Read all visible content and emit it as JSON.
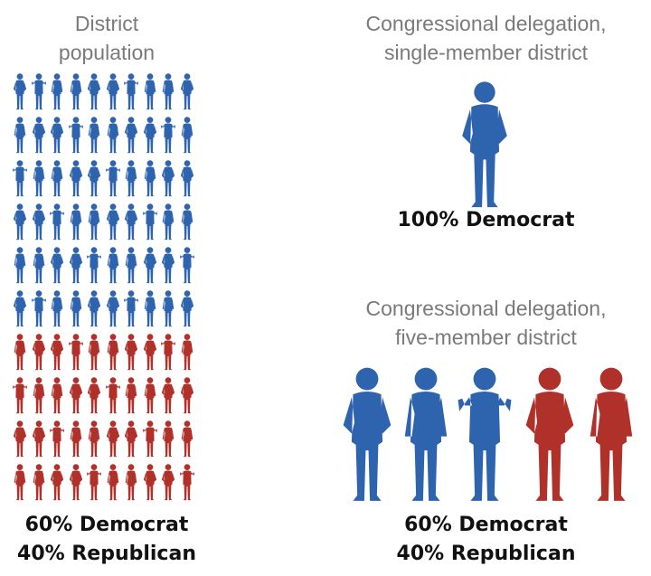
{
  "colors": {
    "democrat": "#2e64ad",
    "republican": "#b0302a"
  },
  "population": {
    "title_line1": "District",
    "title_line2": "population",
    "grid_columns": 10,
    "democrat_count": 60,
    "republican_count": 40,
    "result_line1": "60% Democrat",
    "result_line2": "40% Republican"
  },
  "single_member": {
    "title_line1": "Congressional delegation,",
    "title_line2": "single-member district",
    "members": [
      "democrat"
    ],
    "result": "100% Democrat"
  },
  "five_member": {
    "title_line1": "Congressional delegation,",
    "title_line2": "five-member district",
    "members": [
      "democrat",
      "democrat",
      "democrat",
      "republican",
      "republican"
    ],
    "result_line1": "60% Democrat",
    "result_line2": "40% Republican"
  }
}
